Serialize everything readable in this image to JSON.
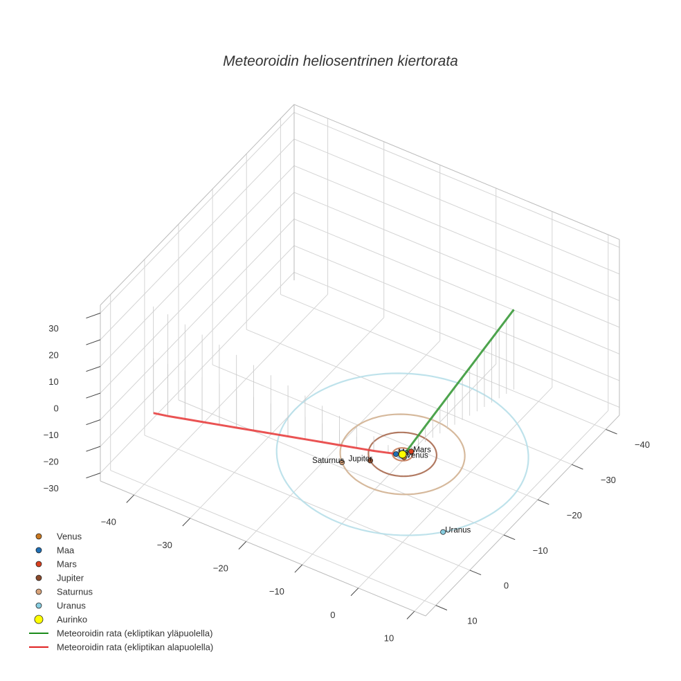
{
  "chart_data": {
    "type": "scatter",
    "title": "Meteoroidin heliosentrinen kiertorata",
    "axes": {
      "x_ticks": [
        "−40",
        "−30",
        "−20",
        "−10",
        "0",
        "10"
      ],
      "y_ticks": [
        "−40",
        "−30",
        "−20",
        "−10",
        "0",
        "10"
      ],
      "z_ticks": [
        "30",
        "20",
        "10",
        "0",
        "−10",
        "−20",
        "−30"
      ],
      "xlim": [
        -46,
        12
      ],
      "ylim": [
        -44,
        13
      ],
      "zlim": [
        -33,
        33
      ],
      "grid": true
    },
    "planets": [
      {
        "name": "Venus",
        "color": "#c9781f",
        "orbit_radius": 0.72,
        "angle_deg": 40,
        "labeled": true
      },
      {
        "name": "Maa",
        "color": "#1f6fb4",
        "orbit_radius": 1.0,
        "angle_deg": 150,
        "labeled": true
      },
      {
        "name": "Mars",
        "color": "#d8401f",
        "orbit_radius": 1.52,
        "angle_deg": 300,
        "labeled": true
      },
      {
        "name": "Jupiter",
        "color": "#8b4a2b",
        "orbit_radius": 5.2,
        "angle_deg": 130,
        "labeled": true
      },
      {
        "name": "Saturnus",
        "color": "#d7a279",
        "orbit_radius": 9.5,
        "angle_deg": 135,
        "labeled": true
      },
      {
        "name": "Uranus",
        "color": "#87cde0",
        "orbit_radius": 19.2,
        "angle_deg": 40,
        "labeled": true
      }
    ],
    "orbit_colors": [
      "#c8a88a",
      "#9fbfd8",
      "#c77c5a",
      "#a86a50",
      "#d2b191",
      "#b7dfe9"
    ],
    "sun": {
      "name": "Aurinko",
      "color": "#ffff00"
    },
    "series": [
      {
        "name": "Meteoroidin rata (ekliptikan yläpuolella)",
        "color": "#3a9a3a",
        "x": [
          0.3,
          0.6,
          1.0,
          1.4,
          1.8,
          2.2,
          2.6,
          3.0,
          3.4,
          3.8,
          4.2,
          4.6,
          5.0,
          5.4,
          5.8,
          6.2
        ],
        "y": [
          -0.6,
          -1.7,
          -3.0,
          -4.4,
          -5.9,
          -7.4,
          -8.9,
          -10.4,
          -12.0,
          -13.5,
          -15.0,
          -16.5,
          -18.0,
          -19.5,
          -21.0,
          -22.5
        ],
        "z": [
          0.5,
          2.0,
          4.0,
          6.0,
          8.0,
          10.0,
          12.0,
          14.0,
          16.0,
          18.0,
          20.0,
          22.0,
          24.0,
          26.0,
          28.0,
          30.0
        ]
      },
      {
        "name": "Meteoroidin rata (ekliptikan alapuolella)",
        "color": "#e84040",
        "x": [
          -0.6,
          -2.5,
          -5.0,
          -8.0,
          -11.0,
          -14.0,
          -17.0,
          -20.0,
          -23.0,
          -26.0,
          -29.0,
          -32.0,
          -35.0,
          -38.0,
          -41.0,
          -43.5
        ],
        "y": [
          0.0,
          0.1,
          0.2,
          0.3,
          0.4,
          0.5,
          0.6,
          0.7,
          0.8,
          0.9,
          1.0,
          1.1,
          1.2,
          1.3,
          1.4,
          1.5
        ],
        "z": [
          -0.5,
          -1.5,
          -2.8,
          -4.2,
          -5.6,
          -7.0,
          -8.4,
          -9.8,
          -11.2,
          -12.6,
          -14.0,
          -15.4,
          -16.8,
          -18.2,
          -19.6,
          -20.5
        ]
      }
    ],
    "legend": {
      "placement": "bottom-left",
      "entries": [
        {
          "label": "Venus",
          "color": "#c9781f",
          "kind": "marker"
        },
        {
          "label": "Maa",
          "color": "#1f6fb4",
          "kind": "marker"
        },
        {
          "label": "Mars",
          "color": "#d8401f",
          "kind": "marker"
        },
        {
          "label": "Jupiter",
          "color": "#8b4a2b",
          "kind": "marker"
        },
        {
          "label": "Saturnus",
          "color": "#d7a279",
          "kind": "marker"
        },
        {
          "label": "Uranus",
          "color": "#87cde0",
          "kind": "marker"
        },
        {
          "label": "Aurinko",
          "color": "#ffff00",
          "kind": "sun"
        },
        {
          "label": "Meteoroidin rata (ekliptikan yläpuolella)",
          "color": "#1a8a1a",
          "kind": "line"
        },
        {
          "label": "Meteoroidin rata (ekliptikan alapuolella)",
          "color": "#e02020",
          "kind": "line"
        }
      ]
    }
  }
}
